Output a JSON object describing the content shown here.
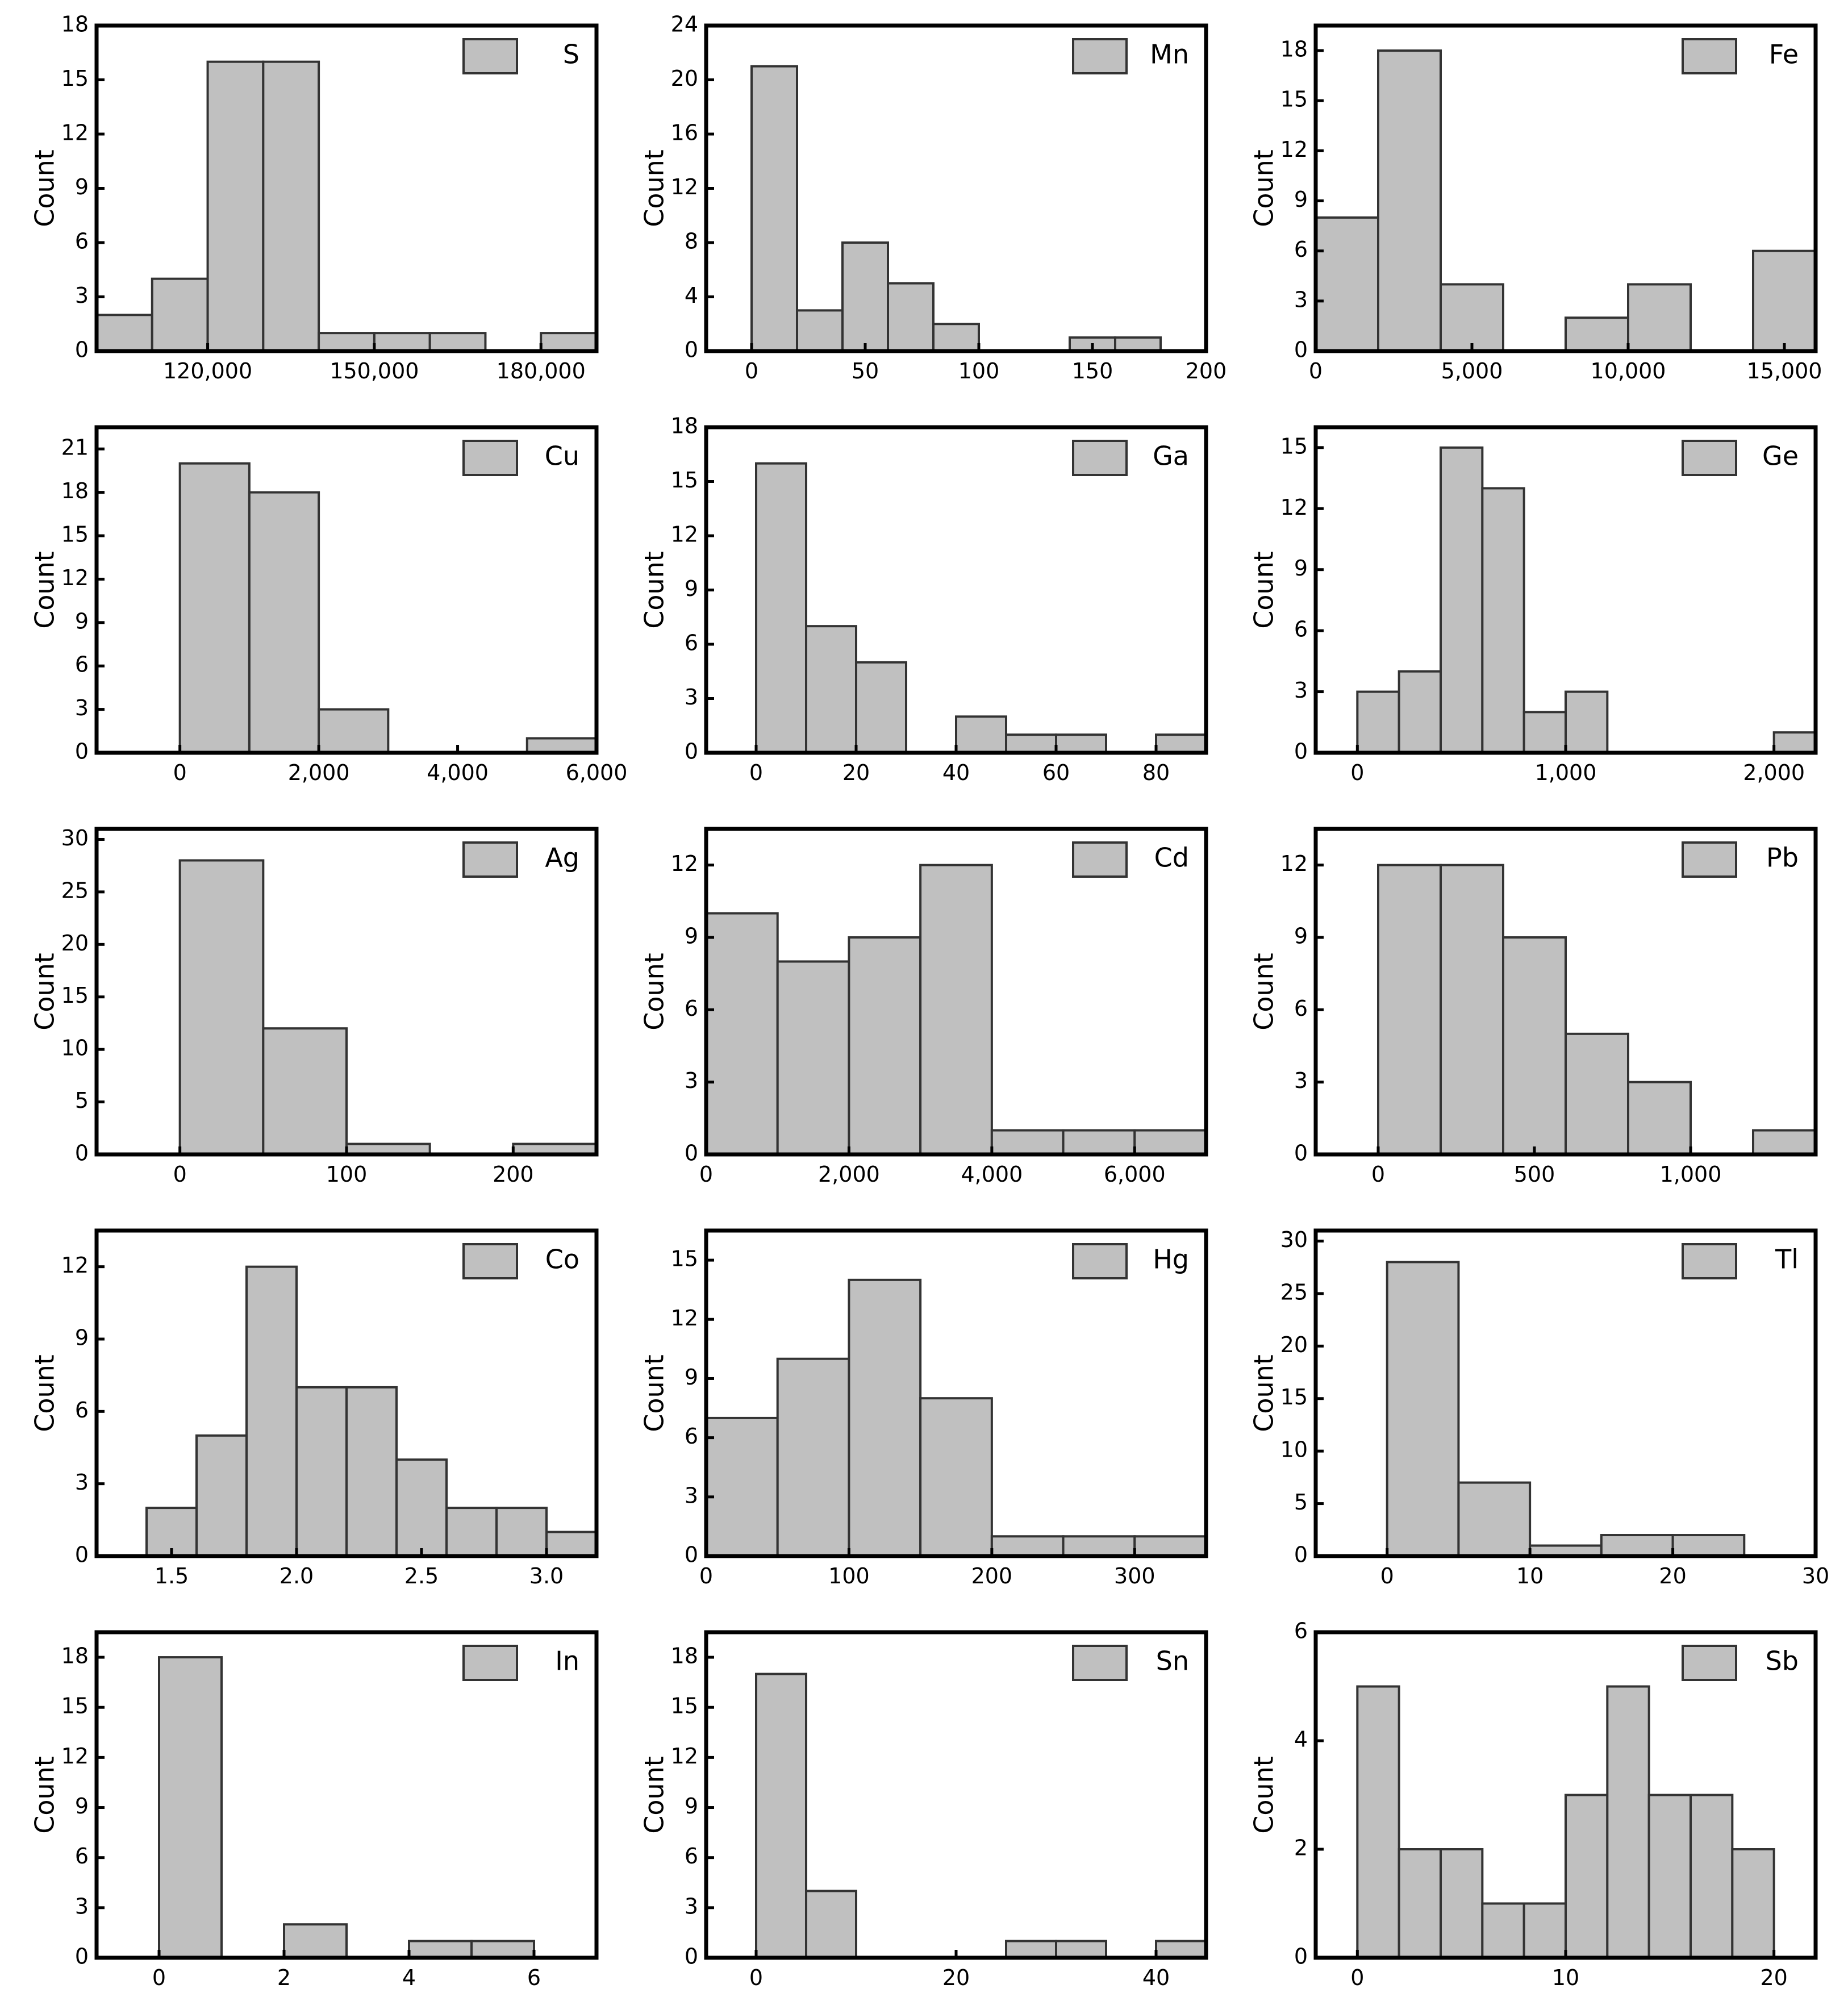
{
  "chart_data": [
    {
      "type": "bar",
      "title": "",
      "legend": "S",
      "xlabel": "",
      "ylabel": "Count",
      "bin_edges": [
        100000,
        110000,
        120000,
        130000,
        140000,
        150000,
        160000,
        170000,
        180000,
        190000
      ],
      "values": [
        2,
        4,
        16,
        16,
        1,
        1,
        1,
        0,
        1
      ],
      "xlim": [
        100000,
        190000
      ],
      "ylim": [
        0,
        18
      ],
      "xticks": [
        120000,
        150000,
        180000
      ],
      "xtick_labels": [
        "120,000",
        "150,000",
        "180,000"
      ],
      "yticks": [
        0,
        3,
        6,
        9,
        12,
        15,
        18
      ],
      "ytick_labels": [
        "0",
        "3",
        "6",
        "9",
        "12",
        "15",
        "18"
      ],
      "legend_position": "top-right",
      "colors": {
        "bar": "#c0c0c0",
        "edge": "#333333",
        "frame": "#000000"
      }
    },
    {
      "type": "bar",
      "title": "",
      "legend": "Mn",
      "xlabel": "",
      "ylabel": "Count",
      "bin_edges": [
        0,
        20,
        40,
        60,
        80,
        100,
        120,
        140,
        160,
        180
      ],
      "values": [
        21,
        3,
        8,
        5,
        2,
        0,
        0,
        1,
        1
      ],
      "xlim": [
        -20,
        200
      ],
      "ylim": [
        0,
        24
      ],
      "xticks": [
        0,
        50,
        100,
        150,
        200
      ],
      "xtick_labels": [
        "0",
        "50",
        "100",
        "150",
        "200"
      ],
      "yticks": [
        0,
        4,
        8,
        12,
        16,
        20,
        24
      ],
      "ytick_labels": [
        "0",
        "4",
        "8",
        "12",
        "16",
        "20",
        "24"
      ],
      "legend_position": "top-right",
      "colors": {
        "bar": "#c0c0c0",
        "edge": "#333333",
        "frame": "#000000"
      }
    },
    {
      "type": "bar",
      "title": "",
      "legend": "Fe",
      "xlabel": "",
      "ylabel": "Count",
      "bin_edges": [
        0,
        2000,
        4000,
        6000,
        8000,
        10000,
        12000,
        14000,
        16000
      ],
      "values": [
        8,
        18,
        4,
        0,
        2,
        4,
        0,
        6
      ],
      "xlim": [
        0,
        16000
      ],
      "ylim": [
        0,
        19.5
      ],
      "xticks": [
        0,
        5000,
        10000,
        15000
      ],
      "xtick_labels": [
        "0",
        "5,000",
        "10,000",
        "15,000"
      ],
      "yticks": [
        0,
        3,
        6,
        9,
        12,
        15,
        18
      ],
      "ytick_labels": [
        "0",
        "3",
        "6",
        "9",
        "12",
        "15",
        "18"
      ],
      "legend_position": "top-right",
      "colors": {
        "bar": "#c0c0c0",
        "edge": "#333333",
        "frame": "#000000"
      }
    },
    {
      "type": "bar",
      "title": "",
      "legend": "Cu",
      "xlabel": "",
      "ylabel": "Count",
      "bin_edges": [
        0,
        1000,
        2000,
        3000,
        4000,
        5000,
        6000
      ],
      "values": [
        20,
        18,
        3,
        0,
        0,
        1
      ],
      "xlim": [
        -1200,
        6000
      ],
      "ylim": [
        0,
        22.5
      ],
      "xticks": [
        0,
        2000,
        4000,
        6000
      ],
      "xtick_labels": [
        "0",
        "2,000",
        "4,000",
        "6,000"
      ],
      "yticks": [
        0,
        3,
        6,
        9,
        12,
        15,
        18,
        21
      ],
      "ytick_labels": [
        "0",
        "3",
        "6",
        "9",
        "12",
        "15",
        "18",
        "21"
      ],
      "legend_position": "top-right",
      "colors": {
        "bar": "#c0c0c0",
        "edge": "#333333",
        "frame": "#000000"
      }
    },
    {
      "type": "bar",
      "title": "",
      "legend": "Ga",
      "xlabel": "",
      "ylabel": "Count",
      "bin_edges": [
        0,
        10,
        20,
        30,
        40,
        50,
        60,
        70,
        80,
        90
      ],
      "values": [
        16,
        7,
        5,
        0,
        2,
        1,
        1,
        0,
        1
      ],
      "xlim": [
        -10,
        90
      ],
      "ylim": [
        0,
        18
      ],
      "xticks": [
        0,
        20,
        40,
        60,
        80
      ],
      "xtick_labels": [
        "0",
        "20",
        "40",
        "60",
        "80"
      ],
      "yticks": [
        0,
        3,
        6,
        9,
        12,
        15,
        18
      ],
      "ytick_labels": [
        "0",
        "3",
        "6",
        "9",
        "12",
        "15",
        "18"
      ],
      "legend_position": "top-right",
      "colors": {
        "bar": "#c0c0c0",
        "edge": "#333333",
        "frame": "#000000"
      }
    },
    {
      "type": "bar",
      "title": "",
      "legend": "Ge",
      "xlabel": "",
      "ylabel": "Count",
      "bin_edges": [
        0,
        200,
        400,
        600,
        800,
        1000,
        1200,
        1400,
        1600,
        1800,
        2000,
        2200
      ],
      "values": [
        3,
        4,
        15,
        13,
        2,
        3,
        0,
        0,
        0,
        0,
        1
      ],
      "xlim": [
        -200,
        2200
      ],
      "ylim": [
        0,
        16
      ],
      "xticks": [
        0,
        1000,
        2000
      ],
      "xtick_labels": [
        "0",
        "1,000",
        "2,000"
      ],
      "yticks": [
        0,
        3,
        6,
        9,
        12,
        15
      ],
      "ytick_labels": [
        "0",
        "3",
        "6",
        "9",
        "12",
        "15"
      ],
      "legend_position": "top-right",
      "colors": {
        "bar": "#c0c0c0",
        "edge": "#333333",
        "frame": "#000000"
      }
    },
    {
      "type": "bar",
      "title": "",
      "legend": "Ag",
      "xlabel": "",
      "ylabel": "Count",
      "bin_edges": [
        0,
        50,
        100,
        150,
        200,
        250
      ],
      "values": [
        28,
        12,
        1,
        0,
        1
      ],
      "xlim": [
        -50,
        250
      ],
      "ylim": [
        0,
        31
      ],
      "xticks": [
        0,
        100,
        200
      ],
      "xtick_labels": [
        "0",
        "100",
        "200"
      ],
      "yticks": [
        0,
        5,
        10,
        15,
        20,
        25,
        30
      ],
      "ytick_labels": [
        "0",
        "5",
        "10",
        "15",
        "20",
        "25",
        "30"
      ],
      "legend_position": "top-right",
      "colors": {
        "bar": "#c0c0c0",
        "edge": "#333333",
        "frame": "#000000"
      }
    },
    {
      "type": "bar",
      "title": "",
      "legend": "Cd",
      "xlabel": "",
      "ylabel": "Count",
      "bin_edges": [
        0,
        1000,
        2000,
        3000,
        4000,
        5000,
        6000,
        7000
      ],
      "values": [
        10,
        8,
        9,
        12,
        1,
        1,
        1
      ],
      "xlim": [
        0,
        7000
      ],
      "ylim": [
        0,
        13.5
      ],
      "xticks": [
        0,
        2000,
        4000,
        6000
      ],
      "xtick_labels": [
        "0",
        "2,000",
        "4,000",
        "6,000"
      ],
      "yticks": [
        0,
        3,
        6,
        9,
        12
      ],
      "ytick_labels": [
        "0",
        "3",
        "6",
        "9",
        "12"
      ],
      "legend_position": "top-right",
      "colors": {
        "bar": "#c0c0c0",
        "edge": "#333333",
        "frame": "#000000"
      }
    },
    {
      "type": "bar",
      "title": "",
      "legend": "Pb",
      "xlabel": "",
      "ylabel": "Count",
      "bin_edges": [
        0,
        200,
        400,
        600,
        800,
        1000,
        1200,
        1400
      ],
      "values": [
        12,
        12,
        9,
        5,
        3,
        0,
        1
      ],
      "xlim": [
        -200,
        1400
      ],
      "ylim": [
        0,
        13.5
      ],
      "xticks": [
        0,
        500,
        1000
      ],
      "xtick_labels": [
        "0",
        "500",
        "1,000"
      ],
      "yticks": [
        0,
        3,
        6,
        9,
        12
      ],
      "ytick_labels": [
        "0",
        "3",
        "6",
        "9",
        "12"
      ],
      "legend_position": "top-right",
      "colors": {
        "bar": "#c0c0c0",
        "edge": "#333333",
        "frame": "#000000"
      }
    },
    {
      "type": "bar",
      "title": "",
      "legend": "Co",
      "xlabel": "",
      "ylabel": "Count",
      "bin_edges": [
        1.4,
        1.6,
        1.8,
        2.0,
        2.2,
        2.4,
        2.6,
        2.8,
        3.0,
        3.2
      ],
      "values": [
        2,
        5,
        12,
        7,
        7,
        4,
        2,
        2,
        1
      ],
      "xlim": [
        1.2,
        3.2
      ],
      "ylim": [
        0,
        13.5
      ],
      "xticks": [
        1.5,
        2.0,
        2.5,
        3.0
      ],
      "xtick_labels": [
        "1.5",
        "2.0",
        "2.5",
        "3.0"
      ],
      "yticks": [
        0,
        3,
        6,
        9,
        12
      ],
      "ytick_labels": [
        "0",
        "3",
        "6",
        "9",
        "12"
      ],
      "legend_position": "top-right",
      "colors": {
        "bar": "#c0c0c0",
        "edge": "#333333",
        "frame": "#000000"
      }
    },
    {
      "type": "bar",
      "title": "",
      "legend": "Hg",
      "xlabel": "",
      "ylabel": "Count",
      "bin_edges": [
        0,
        50,
        100,
        150,
        200,
        250,
        300,
        350
      ],
      "values": [
        7,
        10,
        14,
        8,
        1,
        1,
        1
      ],
      "xlim": [
        0,
        350
      ],
      "ylim": [
        0,
        16.5
      ],
      "xticks": [
        0,
        100,
        200,
        300
      ],
      "xtick_labels": [
        "0",
        "100",
        "200",
        "300"
      ],
      "yticks": [
        0,
        3,
        6,
        9,
        12,
        15
      ],
      "ytick_labels": [
        "0",
        "3",
        "6",
        "9",
        "12",
        "15"
      ],
      "legend_position": "top-right",
      "colors": {
        "bar": "#c0c0c0",
        "edge": "#333333",
        "frame": "#000000"
      }
    },
    {
      "type": "bar",
      "title": "",
      "legend": "Tl",
      "xlabel": "",
      "ylabel": "Count",
      "bin_edges": [
        0,
        5,
        10,
        15,
        20,
        25
      ],
      "values": [
        28,
        7,
        1,
        2,
        2
      ],
      "xlim": [
        -5,
        30
      ],
      "ylim": [
        0,
        31
      ],
      "xticks": [
        0,
        10,
        20,
        30
      ],
      "xtick_labels": [
        "0",
        "10",
        "20",
        "30"
      ],
      "yticks": [
        0,
        5,
        10,
        15,
        20,
        25,
        30
      ],
      "ytick_labels": [
        "0",
        "5",
        "10",
        "15",
        "20",
        "25",
        "30"
      ],
      "legend_position": "top-right",
      "colors": {
        "bar": "#c0c0c0",
        "edge": "#333333",
        "frame": "#000000"
      }
    },
    {
      "type": "bar",
      "title": "",
      "legend": "In",
      "xlabel": "",
      "ylabel": "Count",
      "bin_edges": [
        0,
        1,
        2,
        3,
        4,
        5,
        6
      ],
      "values": [
        18,
        0,
        2,
        0,
        1,
        1
      ],
      "xlim": [
        -1,
        7
      ],
      "ylim": [
        0,
        19.5
      ],
      "xticks": [
        0,
        2,
        4,
        6
      ],
      "xtick_labels": [
        "0",
        "2",
        "4",
        "6"
      ],
      "yticks": [
        0,
        3,
        6,
        9,
        12,
        15,
        18
      ],
      "ytick_labels": [
        "0",
        "3",
        "6",
        "9",
        "12",
        "15",
        "18"
      ],
      "legend_position": "top-right",
      "colors": {
        "bar": "#c0c0c0",
        "edge": "#333333",
        "frame": "#000000"
      }
    },
    {
      "type": "bar",
      "title": "",
      "legend": "Sn",
      "xlabel": "",
      "ylabel": "Count",
      "bin_edges": [
        0,
        5,
        10,
        15,
        20,
        25,
        30,
        35,
        40,
        45
      ],
      "values": [
        17,
        4,
        0,
        0,
        0,
        1,
        1,
        0,
        1
      ],
      "xlim": [
        -5,
        45
      ],
      "ylim": [
        0,
        19.5
      ],
      "xticks": [
        0,
        20,
        40
      ],
      "xtick_labels": [
        "0",
        "20",
        "40"
      ],
      "yticks": [
        0,
        3,
        6,
        9,
        12,
        15,
        18
      ],
      "ytick_labels": [
        "0",
        "3",
        "6",
        "9",
        "12",
        "15",
        "18"
      ],
      "legend_position": "top-right",
      "colors": {
        "bar": "#c0c0c0",
        "edge": "#333333",
        "frame": "#000000"
      }
    },
    {
      "type": "bar",
      "title": "",
      "legend": "Sb",
      "xlabel": "",
      "ylabel": "Count",
      "bin_edges": [
        0,
        2,
        4,
        6,
        8,
        10,
        12,
        14,
        16,
        18,
        20
      ],
      "values": [
        5,
        2,
        2,
        1,
        1,
        3,
        5,
        3,
        3,
        2
      ],
      "xlim": [
        -2,
        22
      ],
      "ylim": [
        0,
        6
      ],
      "xticks": [
        0,
        10,
        20
      ],
      "xtick_labels": [
        "0",
        "10",
        "20"
      ],
      "yticks": [
        0,
        2,
        4,
        6
      ],
      "ytick_labels": [
        "0",
        "2",
        "4",
        "6"
      ],
      "legend_position": "top-right",
      "colors": {
        "bar": "#c0c0c0",
        "edge": "#333333",
        "frame": "#000000"
      }
    }
  ]
}
